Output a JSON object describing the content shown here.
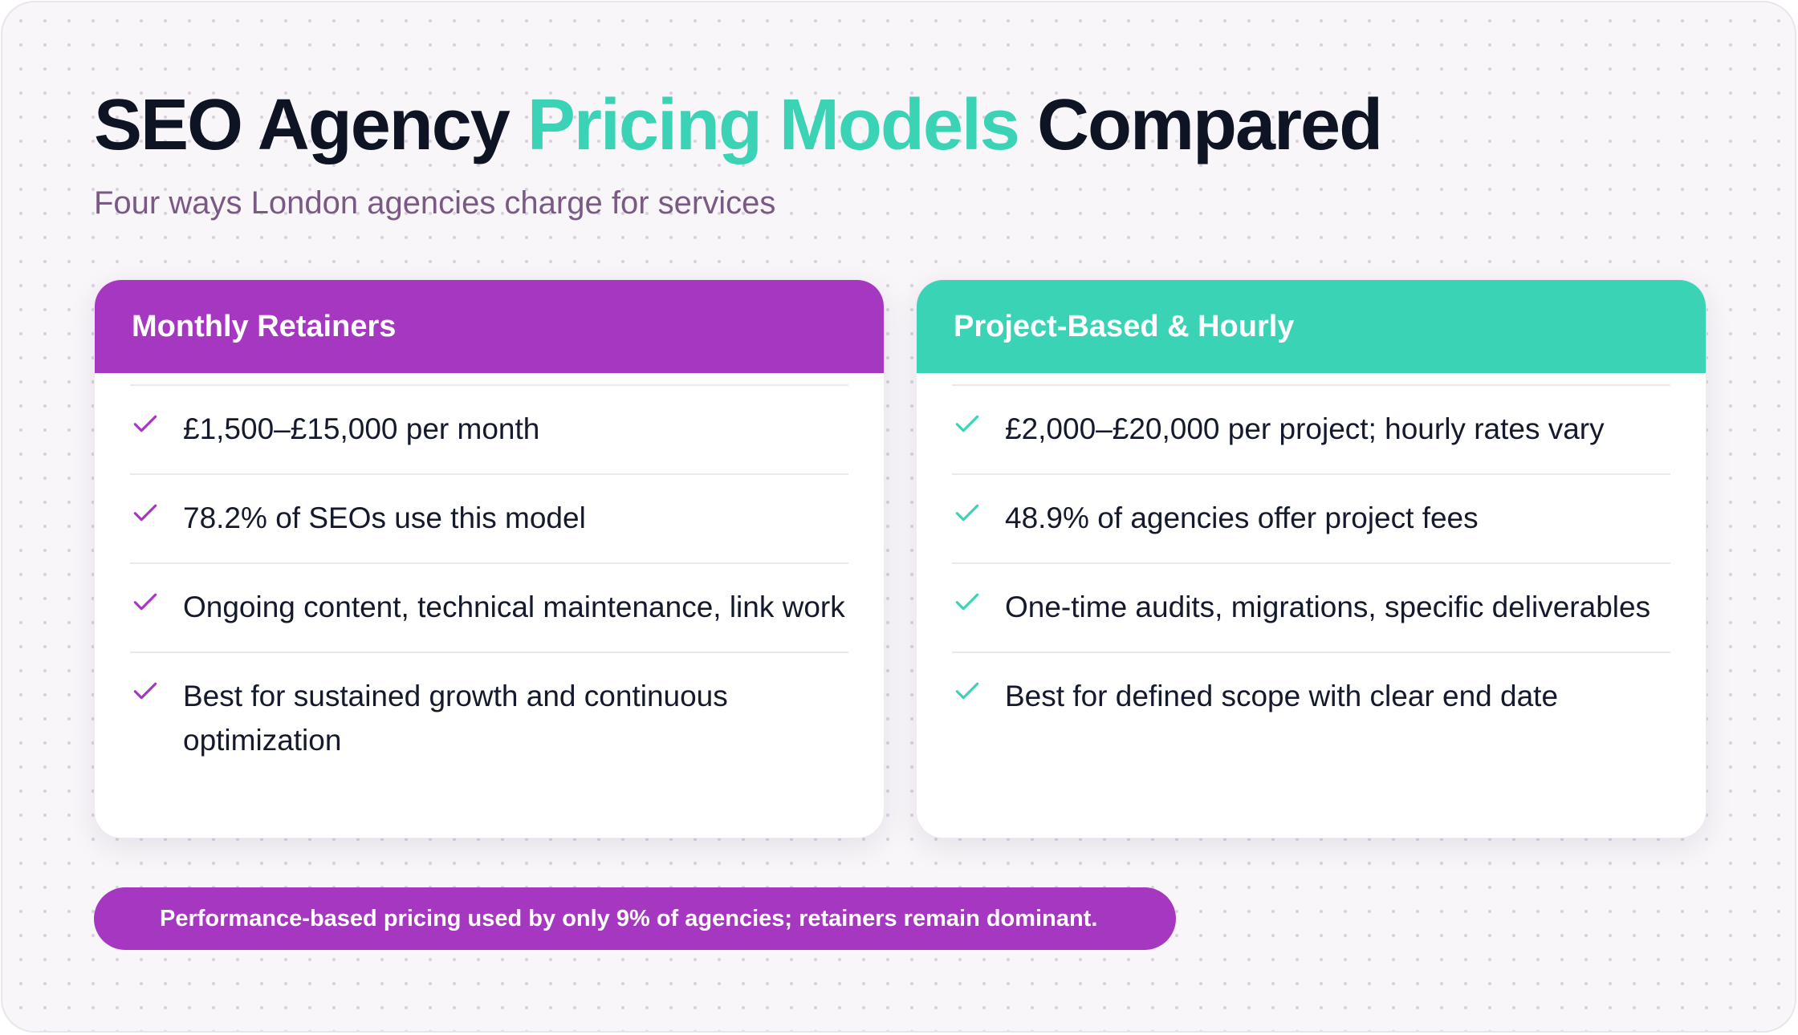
{
  "header": {
    "title_part1": "SEO Agency",
    "title_accent": "Pricing Models",
    "title_part2": "Compared",
    "subtitle": "Four ways London agencies charge for services"
  },
  "cards": [
    {
      "title": "Monthly Retainers",
      "items": [
        "£1,500–£15,000 per month",
        "78.2% of SEOs use this model",
        "Ongoing content, technical maintenance, link work",
        "Best for sustained growth and continuous optimization"
      ]
    },
    {
      "title": "Project-Based & Hourly",
      "items": [
        "£2,000–£20,000 per project; hourly rates vary",
        "48.9% of agencies offer project fees",
        "One-time audits, migrations, specific deliverables",
        "Best for defined scope with clear end date"
      ]
    }
  ],
  "footer": {
    "note": "Performance-based pricing used by only 9% of agencies; retainers remain dominant."
  },
  "icons": {
    "check": "check-icon"
  },
  "colors": {
    "purple": "#a637c0",
    "teal": "#3bd3b5",
    "title": "#0e1424",
    "subtitle": "#7a5a84"
  }
}
